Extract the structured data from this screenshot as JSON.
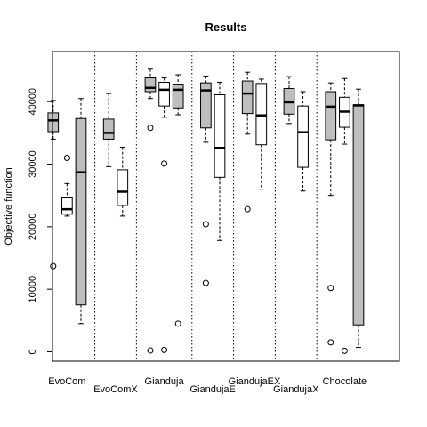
{
  "chart_data": {
    "type": "boxplot",
    "title": "Results",
    "xlabel": "",
    "ylabel": "Objective function",
    "ylim": [
      -1500,
      48000
    ],
    "yticks": [
      0,
      10000,
      20000,
      30000,
      40000
    ],
    "yticks_labels": [
      "0",
      "10000",
      "20000",
      "30000",
      "40000"
    ],
    "groups": [
      {
        "name": "EvoCom",
        "label_row": 1
      },
      {
        "name": "EvoComX",
        "label_row": 2
      },
      {
        "name": "Gianduja",
        "label_row": 1
      },
      {
        "name": "GiandujaE",
        "label_row": 2
      },
      {
        "name": "GiandujaEX",
        "label_row": 1
      },
      {
        "name": "GiandujaX",
        "label_row": 2
      },
      {
        "name": "Chocolate",
        "label_row": 1
      }
    ],
    "boxes": [
      {
        "group": 0,
        "fill": "#bebebe",
        "whisker_low": 34000,
        "q1": 35200,
        "median": 37000,
        "q3": 38200,
        "whisker_high": 40200,
        "outliers": [
          13700
        ]
      },
      {
        "group": 0,
        "fill": "#ffffff",
        "whisker_low": 21700,
        "q1": 22000,
        "median": 22800,
        "q3": 24600,
        "whisker_high": 26900,
        "outliers": [
          31000
        ]
      },
      {
        "group": 0,
        "fill": "#bebebe",
        "whisker_low": 4500,
        "q1": 7500,
        "median": 28700,
        "q3": 37300,
        "whisker_high": 40500,
        "outliers": []
      },
      {
        "group": 1,
        "fill": "#bebebe",
        "whisker_low": 29600,
        "q1": 34000,
        "median": 35000,
        "q3": 37200,
        "whisker_high": 41300,
        "outliers": []
      },
      {
        "group": 1,
        "fill": "#ffffff",
        "whisker_low": 21700,
        "q1": 23400,
        "median": 25600,
        "q3": 29100,
        "whisker_high": 32700,
        "outliers": []
      },
      {
        "group": 2,
        "fill": "#bebebe",
        "whisker_low": 40500,
        "q1": 41600,
        "median": 42200,
        "q3": 43800,
        "whisker_high": 45200,
        "outliers": [
          35800,
          200
        ]
      },
      {
        "group": 2,
        "fill": "#ffffff",
        "whisker_low": 37500,
        "q1": 39300,
        "median": 41900,
        "q3": 43100,
        "whisker_high": 43800,
        "outliers": [
          30100,
          300
        ]
      },
      {
        "group": 2,
        "fill": "#bebebe",
        "whisker_low": 37900,
        "q1": 39000,
        "median": 41900,
        "q3": 42800,
        "whisker_high": 44300,
        "outliers": [
          4500
        ]
      },
      {
        "group": 3,
        "fill": "#bebebe",
        "whisker_low": 33500,
        "q1": 35800,
        "median": 41800,
        "q3": 43000,
        "whisker_high": 44100,
        "outliers": [
          20400,
          11000
        ]
      },
      {
        "group": 3,
        "fill": "#ffffff",
        "whisker_low": 17800,
        "q1": 27900,
        "median": 32600,
        "q3": 41100,
        "whisker_high": 43100,
        "outliers": []
      },
      {
        "group": 4,
        "fill": "#bebebe",
        "whisker_low": 34800,
        "q1": 38100,
        "median": 41300,
        "q3": 43300,
        "whisker_high": 44700,
        "outliers": [
          22800
        ]
      },
      {
        "group": 4,
        "fill": "#ffffff",
        "whisker_low": 26000,
        "q1": 33100,
        "median": 37800,
        "q3": 42900,
        "whisker_high": 43600,
        "outliers": []
      },
      {
        "group": 5,
        "fill": "#bebebe",
        "whisker_low": 36500,
        "q1": 38000,
        "median": 39900,
        "q3": 42100,
        "whisker_high": 44000,
        "outliers": []
      },
      {
        "group": 5,
        "fill": "#ffffff",
        "whisker_low": 25700,
        "q1": 29500,
        "median": 35100,
        "q3": 39300,
        "whisker_high": 41600,
        "outliers": []
      },
      {
        "group": 6,
        "fill": "#bebebe",
        "whisker_low": 25000,
        "q1": 33900,
        "median": 39200,
        "q3": 41600,
        "whisker_high": 43000,
        "outliers": [
          10200,
          1500
        ]
      },
      {
        "group": 6,
        "fill": "#ffffff",
        "whisker_low": 33200,
        "q1": 35900,
        "median": 38400,
        "q3": 40700,
        "whisker_high": 43700,
        "outliers": [
          150
        ]
      },
      {
        "group": 6,
        "fill": "#bebebe",
        "whisker_low": 700,
        "q1": 4300,
        "median": 39400,
        "q3": 39500,
        "whisker_high": 42000,
        "outliers": []
      }
    ],
    "group_separators": "dotted",
    "grid": false
  }
}
